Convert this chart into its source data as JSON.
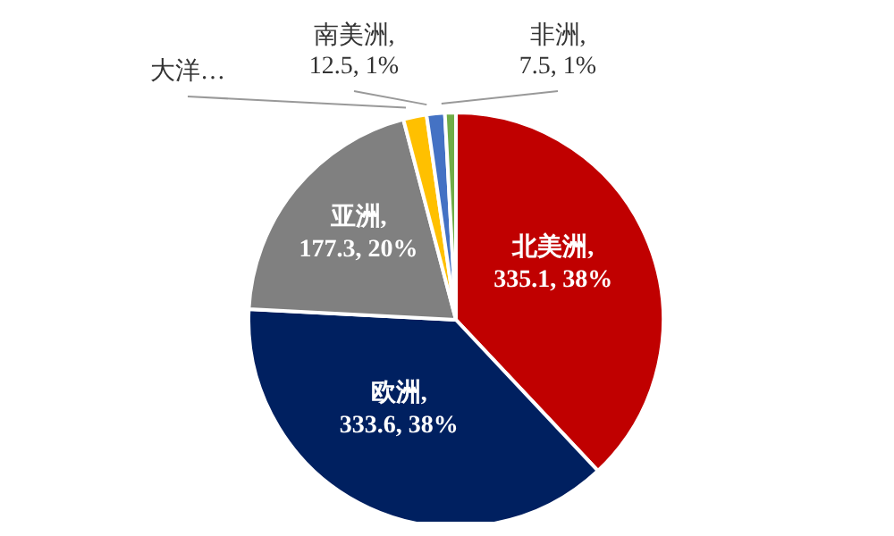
{
  "chart_data": {
    "type": "pie",
    "categories": [
      "北美洲",
      "欧洲",
      "亚洲",
      "大洋…",
      "南美洲",
      "非洲"
    ],
    "values": [
      335.1,
      333.6,
      177.3,
      16,
      12.5,
      7.5
    ],
    "colors": [
      "#c00000",
      "#002060",
      "#808080",
      "#ffc000",
      "#4472c4",
      "#70ad47"
    ],
    "value_labels": [
      ", 335.1, 38%",
      ", 333.6, 38%",
      ", 177.3, 20%",
      null,
      ", 12.5, 1%",
      ", 7.5, 1%"
    ]
  }
}
